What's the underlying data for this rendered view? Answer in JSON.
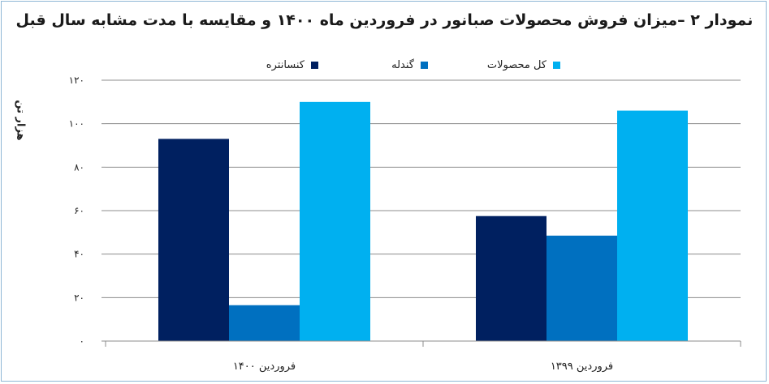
{
  "chart_data": {
    "type": "bar",
    "title": "نمودار ۲ –میزان فروش محصولات صبانور در فروردین ماه ۱۴۰۰ و مقایسه با مدت مشابه سال قبل",
    "ylabel": "هزار تن",
    "xlabel": "",
    "ylim": [
      0,
      120
    ],
    "y_ticks": [
      0,
      20,
      40,
      60,
      80,
      100,
      120
    ],
    "y_tick_labels": [
      "۰",
      "۲۰",
      "۴۰",
      "۶۰",
      "۸۰",
      "۱۰۰",
      "۱۲۰"
    ],
    "categories": [
      "فروردین ۱۴۰۰",
      "فروردین ۱۳۹۹"
    ],
    "series": [
      {
        "name": "کنسانتره",
        "color": "#002060",
        "values": [
          93,
          57.5
        ]
      },
      {
        "name": "گندله",
        "color": "#0070c0",
        "values": [
          16.5,
          48.5
        ]
      },
      {
        "name": "کل محصولات",
        "color": "#00b0f0",
        "values": [
          110,
          106
        ]
      }
    ],
    "grid": true,
    "legend_position": "top"
  }
}
